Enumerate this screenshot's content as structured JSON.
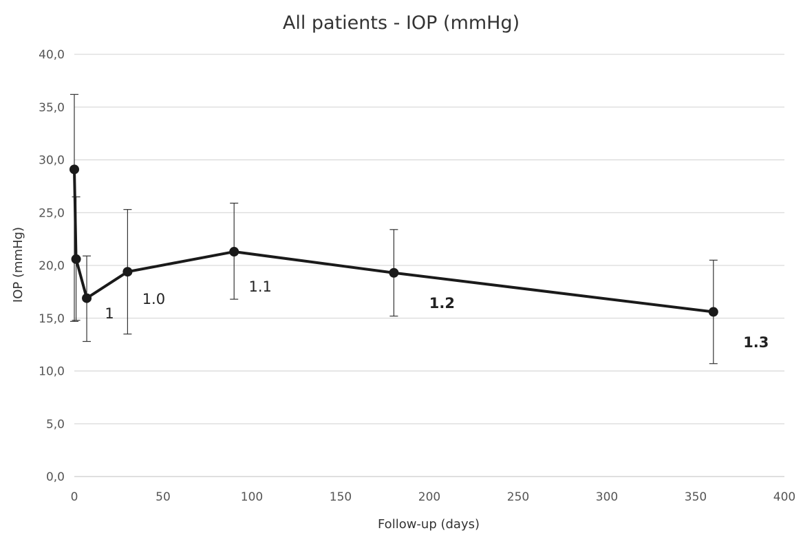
{
  "chart_data": {
    "type": "line",
    "title": "All patients - IOP  (mmHg)",
    "xlabel": "Follow-up (days)",
    "ylabel": "IOP (mmHg)",
    "xlim": [
      0,
      400
    ],
    "ylim": [
      0,
      40
    ],
    "x_ticks": [
      0,
      50,
      100,
      150,
      200,
      250,
      300,
      350,
      400
    ],
    "x_tick_labels": [
      "0",
      "50",
      "100",
      "150",
      "200",
      "250",
      "300",
      "350",
      "400"
    ],
    "y_ticks": [
      0,
      5,
      10,
      15,
      20,
      25,
      30,
      35,
      40
    ],
    "y_tick_labels": [
      "0,0",
      "5,0",
      "10,0",
      "15,0",
      "20,0",
      "25,0",
      "30,0",
      "35,0",
      "40,0"
    ],
    "grid": "horizontal",
    "series": [
      {
        "x": [
          0,
          1,
          7,
          30,
          90,
          180,
          360
        ],
        "y": [
          29.1,
          20.6,
          16.9,
          19.4,
          21.3,
          19.3,
          15.6
        ],
        "error_low": [
          14.7,
          14.8,
          12.8,
          13.5,
          16.8,
          15.2,
          10.7
        ],
        "error_high": [
          36.2,
          26.5,
          20.9,
          25.3,
          25.9,
          23.4,
          20.5
        ]
      }
    ],
    "annotations": [
      {
        "text": "1",
        "x": 7,
        "bold": false
      },
      {
        "text": "1.0",
        "x": 30,
        "bold": false
      },
      {
        "text": "1.1",
        "x": 90,
        "bold": false
      },
      {
        "text": "1.2",
        "x": 180,
        "bold": true
      },
      {
        "text": "1.3",
        "x": 360,
        "bold": true
      }
    ]
  }
}
